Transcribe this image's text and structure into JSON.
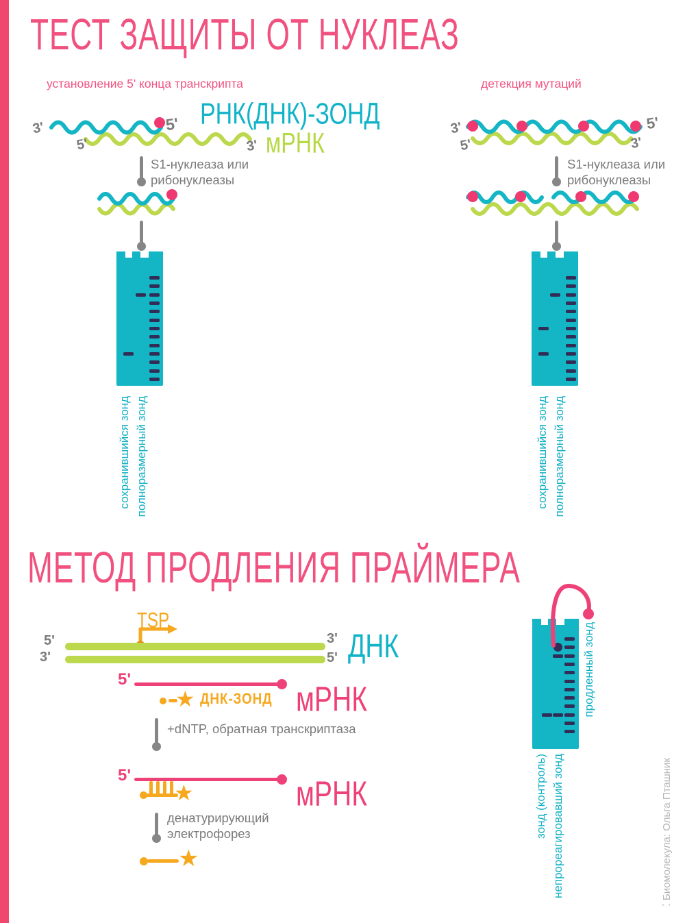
{
  "colors": {
    "accent_pink": "#f0517e",
    "strand_pink": "#ee4178",
    "teal": "#10b3c7",
    "gel_teal": "#14b5c5",
    "green": "#bcd84d",
    "orange": "#f6a81f",
    "gray": "#7b7b7b",
    "band_navy": "#312d57",
    "left_bar": "#f0476f"
  },
  "icons": {
    "star": "★",
    "logo_dots": "⁚"
  },
  "section1": {
    "title": "ТЕСТ ЗАЩИТЫ ОТ НУКЛЕАЗ",
    "caption_left": "установление 5' конца транскрипта",
    "caption_right": "детекция мутаций",
    "probe_label": "РНК(ДНК)-ЗОНД",
    "mrna_label": "мРНК",
    "enzyme_line1": "S1-нуклеаза или",
    "enzyme_line2": "рибонуклеазы",
    "lane_label_preserved": "сохранившийся зонд",
    "lane_label_fulllength": "полноразмерный зонд"
  },
  "section2": {
    "title": "МЕТОД ПРОДЛЕНИЯ ПРАЙМЕРА",
    "tsp_label": "TSP",
    "dna_label": "ДНК",
    "mrna_label_1": "мРНК",
    "mrna_label_2": "мРНК",
    "probe_label": "ДНК-ЗОНД",
    "step1_label": "+dNTP, обратная транскриптаза",
    "step2_line1": "денатурирующий",
    "step2_line2": "электрофорез",
    "extended_probe_label": "продленный зонд",
    "lane_label_control": "зонд (контроль)",
    "lane_label_unreacted": "непрореагировавший зонд"
  },
  "primes": {
    "s1l_probe_3": "3'",
    "s1l_mrna_5": "5'",
    "s1l_probe_5": "5'",
    "s1l_mrna_3": "3'",
    "s1r_probe_3": "3'",
    "s1r_mrna_5": "5'",
    "s1r_probe_5": "5'",
    "s1r_mrna_3": "3'",
    "dna_tl": "5'",
    "dna_bl": "3'",
    "dna_tr": "3'",
    "dna_br": "5'",
    "mrna1_5": "5'",
    "mrna2_5": "5'"
  },
  "watermark": "Биомолекула: Ольга Пташник",
  "gel_data": {
    "gels": [
      {
        "name": "s1-left",
        "lanes": [
          {
            "label": "сохранившийся зонд",
            "bands": [
              9
            ]
          },
          {
            "label": "полноразмерный зонд",
            "bands": [
              2
            ]
          },
          {
            "label": "ladder",
            "bands": [
              0,
              1,
              2,
              3,
              4,
              5,
              6,
              7,
              8,
              9,
              10,
              11,
              12
            ]
          }
        ]
      },
      {
        "name": "s1-right",
        "lanes": [
          {
            "label": "сохранившийся зонд",
            "bands": [
              6,
              9
            ]
          },
          {
            "label": "полноразмерный зонд",
            "bands": [
              2
            ]
          },
          {
            "label": "ladder",
            "bands": [
              0,
              1,
              2,
              3,
              4,
              5,
              6,
              7,
              8,
              9,
              10,
              11,
              12
            ]
          }
        ]
      },
      {
        "name": "primer-extension",
        "lanes": [
          {
            "label": "зонд (контроль)",
            "bands": [
              9
            ]
          },
          {
            "label": "непрореагировавший зонд",
            "bands": [
              2,
              9
            ],
            "dot_row": 1
          },
          {
            "label": "ladder",
            "bands": [
              0,
              1,
              2,
              3,
              4,
              5,
              6,
              7,
              8,
              9,
              10,
              11
            ]
          }
        ]
      }
    ]
  }
}
